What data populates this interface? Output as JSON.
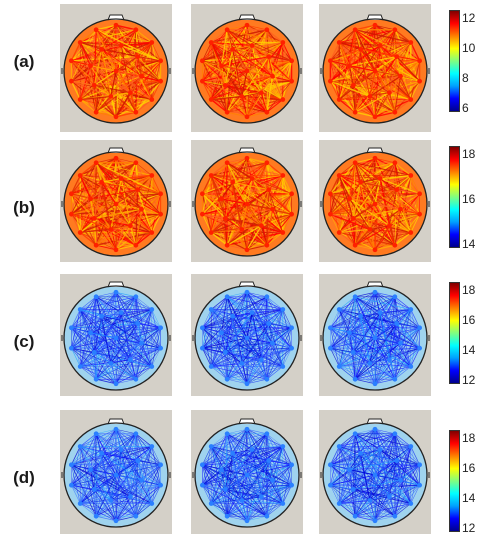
{
  "rows": [
    {
      "label": "(a)",
      "ticks": [
        "12",
        "10",
        "8",
        "6"
      ],
      "background_hue": "hot"
    },
    {
      "label": "(b)",
      "ticks": [
        "18",
        "16",
        "14"
      ],
      "background_hue": "hot"
    },
    {
      "label": "(c)",
      "ticks": [
        "18",
        "16",
        "14",
        "12"
      ],
      "background_hue": "cool"
    },
    {
      "label": "(d)",
      "ticks": [
        "18",
        "16",
        "14",
        "12"
      ],
      "background_hue": "cool"
    }
  ],
  "colormap": [
    "#00008f",
    "#0000ff",
    "#00a0ff",
    "#00ffff",
    "#80ff80",
    "#ffff00",
    "#ff8000",
    "#ff0000",
    "#800000"
  ]
}
